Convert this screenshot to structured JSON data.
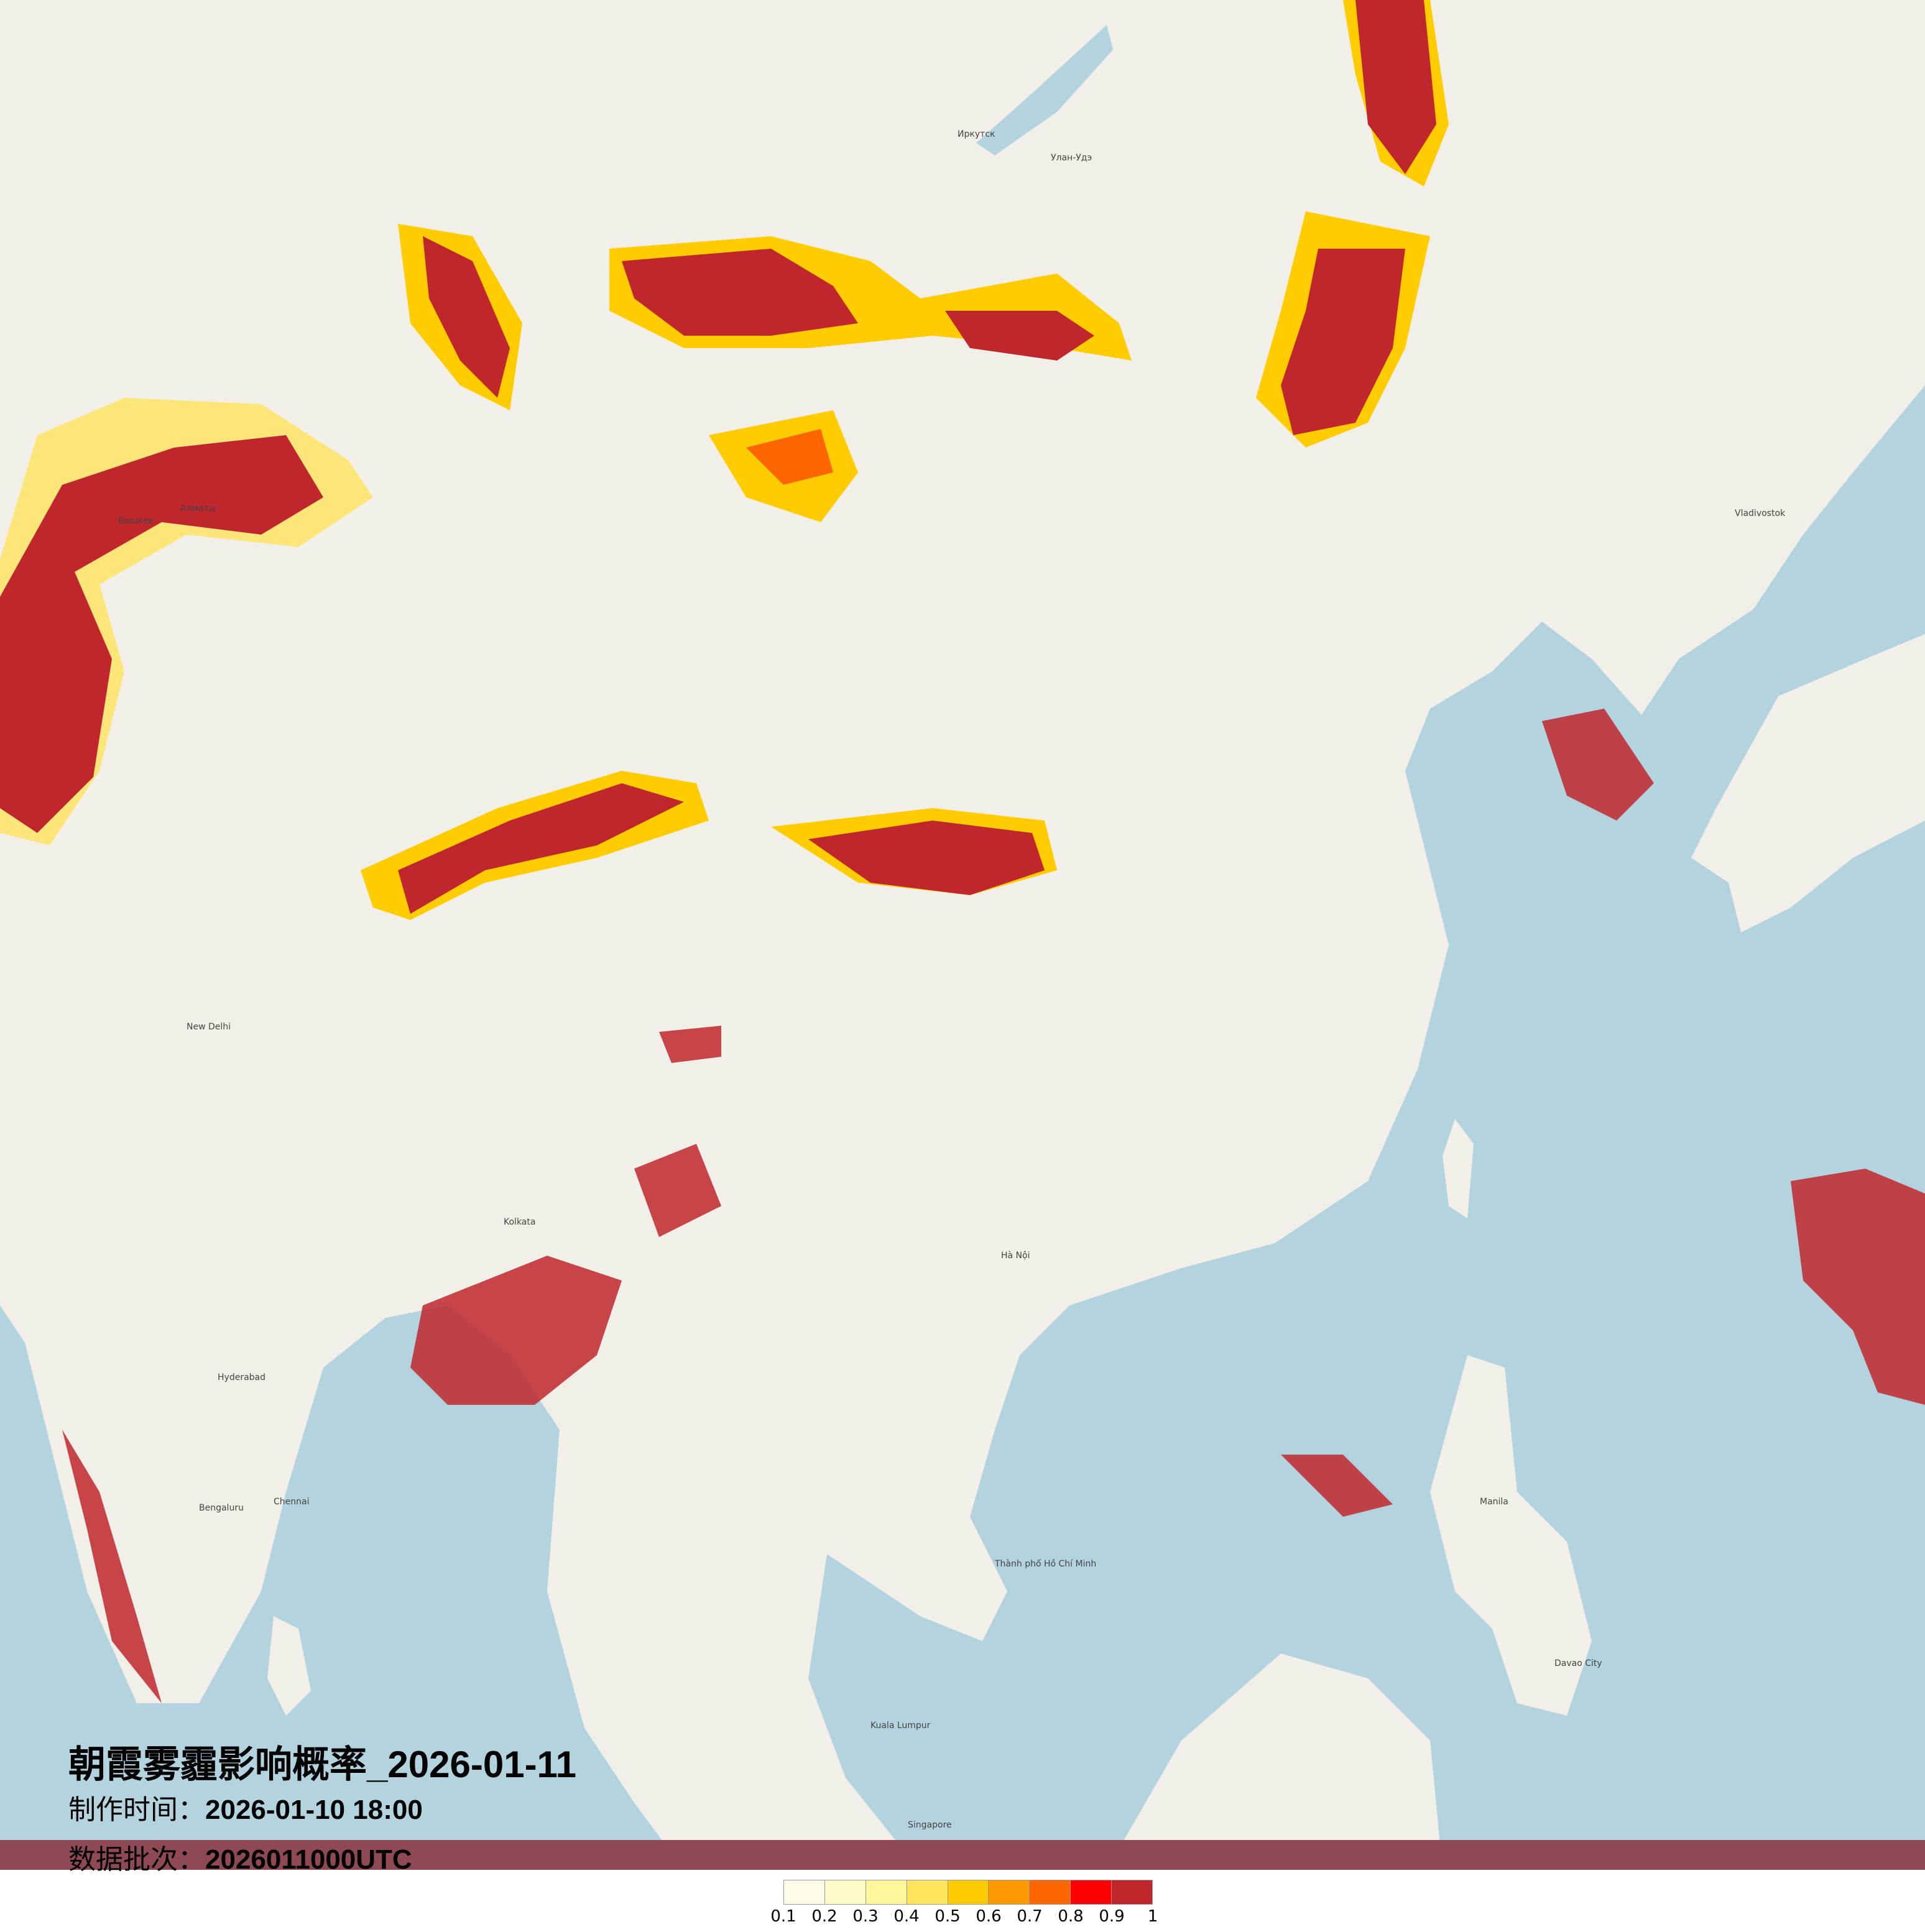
{
  "title": "朝霞雾霾影响概率_2026-01-11",
  "production_time": {
    "label": "制作时间：",
    "value": "2026-01-10 18:00"
  },
  "data_batch": {
    "label": "数据批次：",
    "value": "2026011000UTC"
  },
  "legend": {
    "colors": [
      "#fffde8",
      "#fffac8",
      "#fff799",
      "#ffe45c",
      "#ffcc00",
      "#ff9900",
      "#ff6600",
      "#ff0000",
      "#c0272d"
    ],
    "ticks": [
      "0.1",
      "0.2",
      "0.3",
      "0.4",
      "0.5",
      "0.6",
      "0.7",
      "0.8",
      "0.9",
      "1"
    ]
  },
  "map": {
    "land_color": "#f2efe9",
    "sea_color": "#b3d3df",
    "cities": [
      "Иркутск",
      "Улан-Удэ",
      "Алматы",
      "Бишкек",
      "Vladivostok",
      "New Delhi",
      "Kolkata",
      "Hyderabad",
      "Bengaluru",
      "Chennai",
      "Singapore",
      "Manila",
      "Hà Nội",
      "Thành phố Hồ Chí Minh",
      "Kuala Lumpur",
      "Davao City"
    ]
  }
}
